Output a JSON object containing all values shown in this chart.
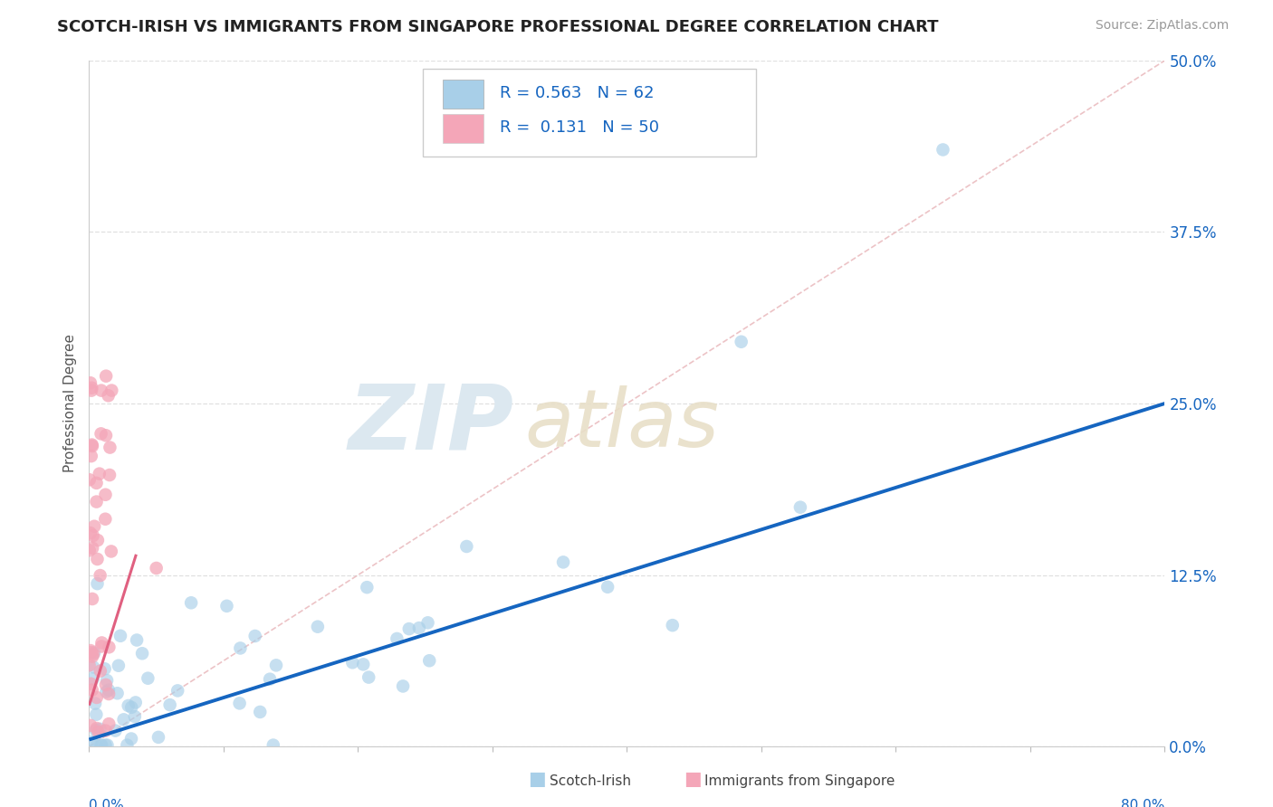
{
  "title": "SCOTCH-IRISH VS IMMIGRANTS FROM SINGAPORE PROFESSIONAL DEGREE CORRELATION CHART",
  "source": "Source: ZipAtlas.com",
  "ylabel": "Professional Degree",
  "ytick_vals": [
    0.0,
    12.5,
    25.0,
    37.5,
    50.0
  ],
  "ytick_labels": [
    "0.0%",
    "12.5%",
    "25.0%",
    "37.5%",
    "50.0%"
  ],
  "xlim": [
    0.0,
    80.0
  ],
  "ylim": [
    0.0,
    50.0
  ],
  "legend_R1": "0.563",
  "legend_N1": "62",
  "legend_R2": "0.131",
  "legend_N2": "50",
  "color_blue": "#a8cfe8",
  "color_pink": "#f4a6b8",
  "color_blue_line": "#1565c0",
  "color_pink_line": "#e06080",
  "color_diag": "#e8b4b8",
  "color_blue_text": "#1565c0",
  "watermark_zip_color": "#e0e8f0",
  "watermark_atlas_color": "#e8e4d0",
  "background": "#ffffff",
  "grid_color": "#e0e0e0",
  "spine_color": "#cccccc",
  "title_color": "#222222",
  "source_color": "#999999",
  "ylabel_color": "#555555",
  "axis_label_color": "#1565c0"
}
